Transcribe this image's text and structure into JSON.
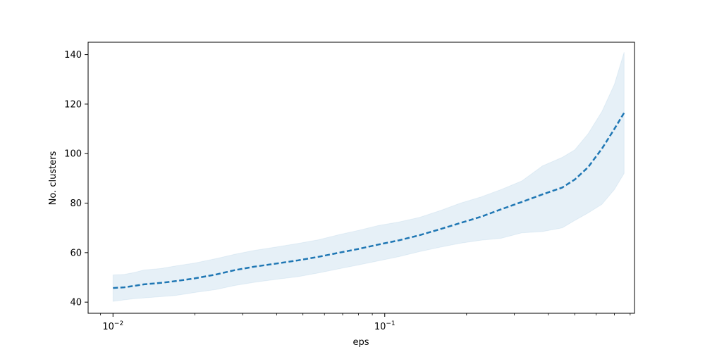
{
  "chart_data": {
    "type": "line",
    "title": "",
    "xlabel": "eps",
    "ylabel": "No. clusters",
    "xscale": "log",
    "xlim": [
      0.0081,
      0.83
    ],
    "ylim": [
      35.5,
      145
    ],
    "x_ticks": [
      {
        "value": 0.01,
        "base": "10",
        "exp": "−2"
      },
      {
        "value": 0.1,
        "base": "10",
        "exp": "−1"
      }
    ],
    "y_ticks": [
      40,
      60,
      80,
      100,
      120,
      140
    ],
    "grid": false,
    "colors": {
      "line": "#1f77b4",
      "band": "#1f77b4"
    },
    "series": [
      {
        "line_style": "dashed",
        "x": [
          0.01,
          0.011,
          0.012,
          0.013,
          0.015,
          0.017,
          0.02,
          0.024,
          0.028,
          0.033,
          0.04,
          0.048,
          0.057,
          0.068,
          0.08,
          0.095,
          0.113,
          0.134,
          0.16,
          0.19,
          0.226,
          0.268,
          0.32,
          0.38,
          0.45,
          0.5,
          0.56,
          0.63,
          0.7,
          0.76
        ],
        "y": [
          45.7,
          46.0,
          46.6,
          47.2,
          47.8,
          48.5,
          49.6,
          51.2,
          52.9,
          54.3,
          55.6,
          56.9,
          58.3,
          60.0,
          61.5,
          63.3,
          65.0,
          67.0,
          69.5,
          72.0,
          74.5,
          77.5,
          80.5,
          83.5,
          86.3,
          89.5,
          94.5,
          102.0,
          110.0,
          116.5
        ],
        "lower": [
          40.3,
          40.9,
          41.4,
          41.7,
          42.2,
          42.7,
          43.9,
          45.1,
          46.7,
          48.0,
          49.2,
          50.3,
          51.8,
          53.5,
          55.0,
          56.7,
          58.4,
          60.4,
          62.2,
          63.8,
          65.0,
          65.8,
          68.0,
          68.5,
          70.0,
          73.0,
          76.0,
          79.5,
          85.5,
          92.0
        ],
        "upper": [
          51.0,
          51.2,
          52.0,
          53.0,
          53.6,
          54.6,
          55.8,
          57.6,
          59.3,
          60.9,
          62.3,
          63.7,
          65.2,
          67.3,
          69.0,
          71.0,
          72.4,
          74.2,
          77.0,
          80.0,
          82.5,
          85.5,
          89.0,
          95.0,
          98.5,
          101.5,
          108.0,
          117.0,
          128.0,
          141.0
        ]
      }
    ]
  }
}
